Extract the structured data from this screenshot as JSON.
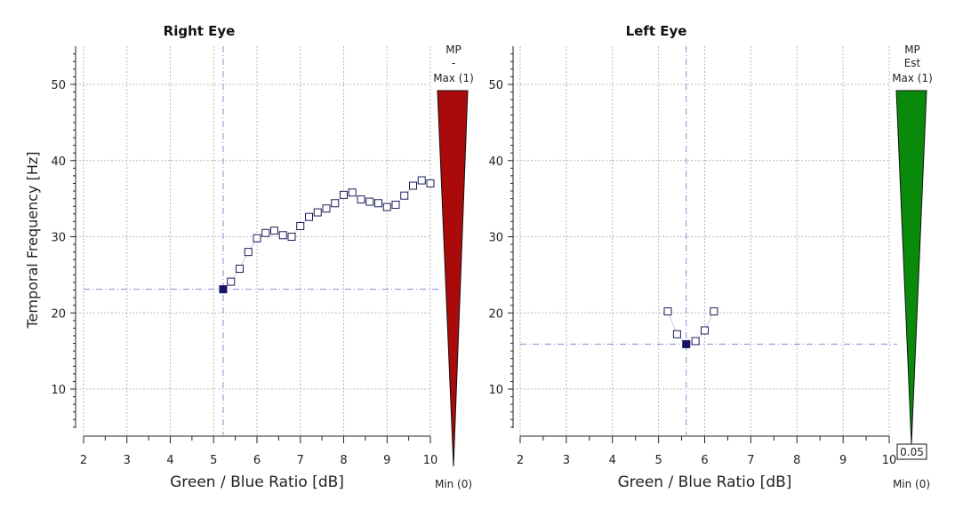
{
  "chart_data": [
    {
      "type": "scatter",
      "title": "Right Eye",
      "xlabel": "Green / Blue Ratio [dB]",
      "ylabel": "Temporal Frequency [Hz]",
      "xlim": [
        2,
        10
      ],
      "ylim": [
        4,
        55
      ],
      "xticks": [
        2,
        3,
        4,
        5,
        6,
        7,
        8,
        9,
        10
      ],
      "yticks": [
        10,
        20,
        30,
        40,
        50
      ],
      "grid": true,
      "x": [
        5.4,
        5.6,
        5.8,
        6.0,
        6.2,
        6.4,
        6.6,
        6.8,
        7.0,
        7.2,
        7.4,
        7.6,
        7.8,
        8.0,
        8.2,
        8.4,
        8.6,
        8.8,
        9.0,
        9.2,
        9.4,
        9.6,
        9.8,
        10.0
      ],
      "y": [
        24.1,
        25.8,
        28.0,
        29.8,
        30.5,
        30.8,
        30.2,
        30.0,
        31.4,
        32.6,
        33.2,
        33.7,
        34.4,
        35.5,
        35.8,
        34.9,
        34.6,
        34.4,
        33.9,
        34.2,
        35.4,
        36.7,
        37.4,
        37.0
      ],
      "selected_point": {
        "x": 5.22,
        "y": 23.1
      },
      "indicator": {
        "header": [
          "MP",
          "-",
          "Max (1)"
        ],
        "min_label": "Min (0)",
        "color": "#aa0a0a"
      }
    },
    {
      "type": "scatter",
      "title": "Left Eye",
      "xlabel": "Green / Blue Ratio [dB]",
      "ylabel": "",
      "xlim": [
        2,
        10
      ],
      "ylim": [
        4,
        55
      ],
      "xticks": [
        2,
        3,
        4,
        5,
        6,
        7,
        8,
        9,
        10
      ],
      "yticks": [
        10,
        20,
        30,
        40,
        50
      ],
      "grid": true,
      "x": [
        5.2,
        5.4,
        5.8,
        6.0,
        6.2
      ],
      "y": [
        20.2,
        17.2,
        16.3,
        17.7,
        20.2
      ],
      "selected_point": {
        "x": 5.6,
        "y": 15.9
      },
      "indicator": {
        "header": [
          "MP",
          "Est",
          "Max (1)"
        ],
        "min_label": "Min (0)",
        "value_label": "0.05",
        "color": "#0a8a0a"
      }
    }
  ]
}
